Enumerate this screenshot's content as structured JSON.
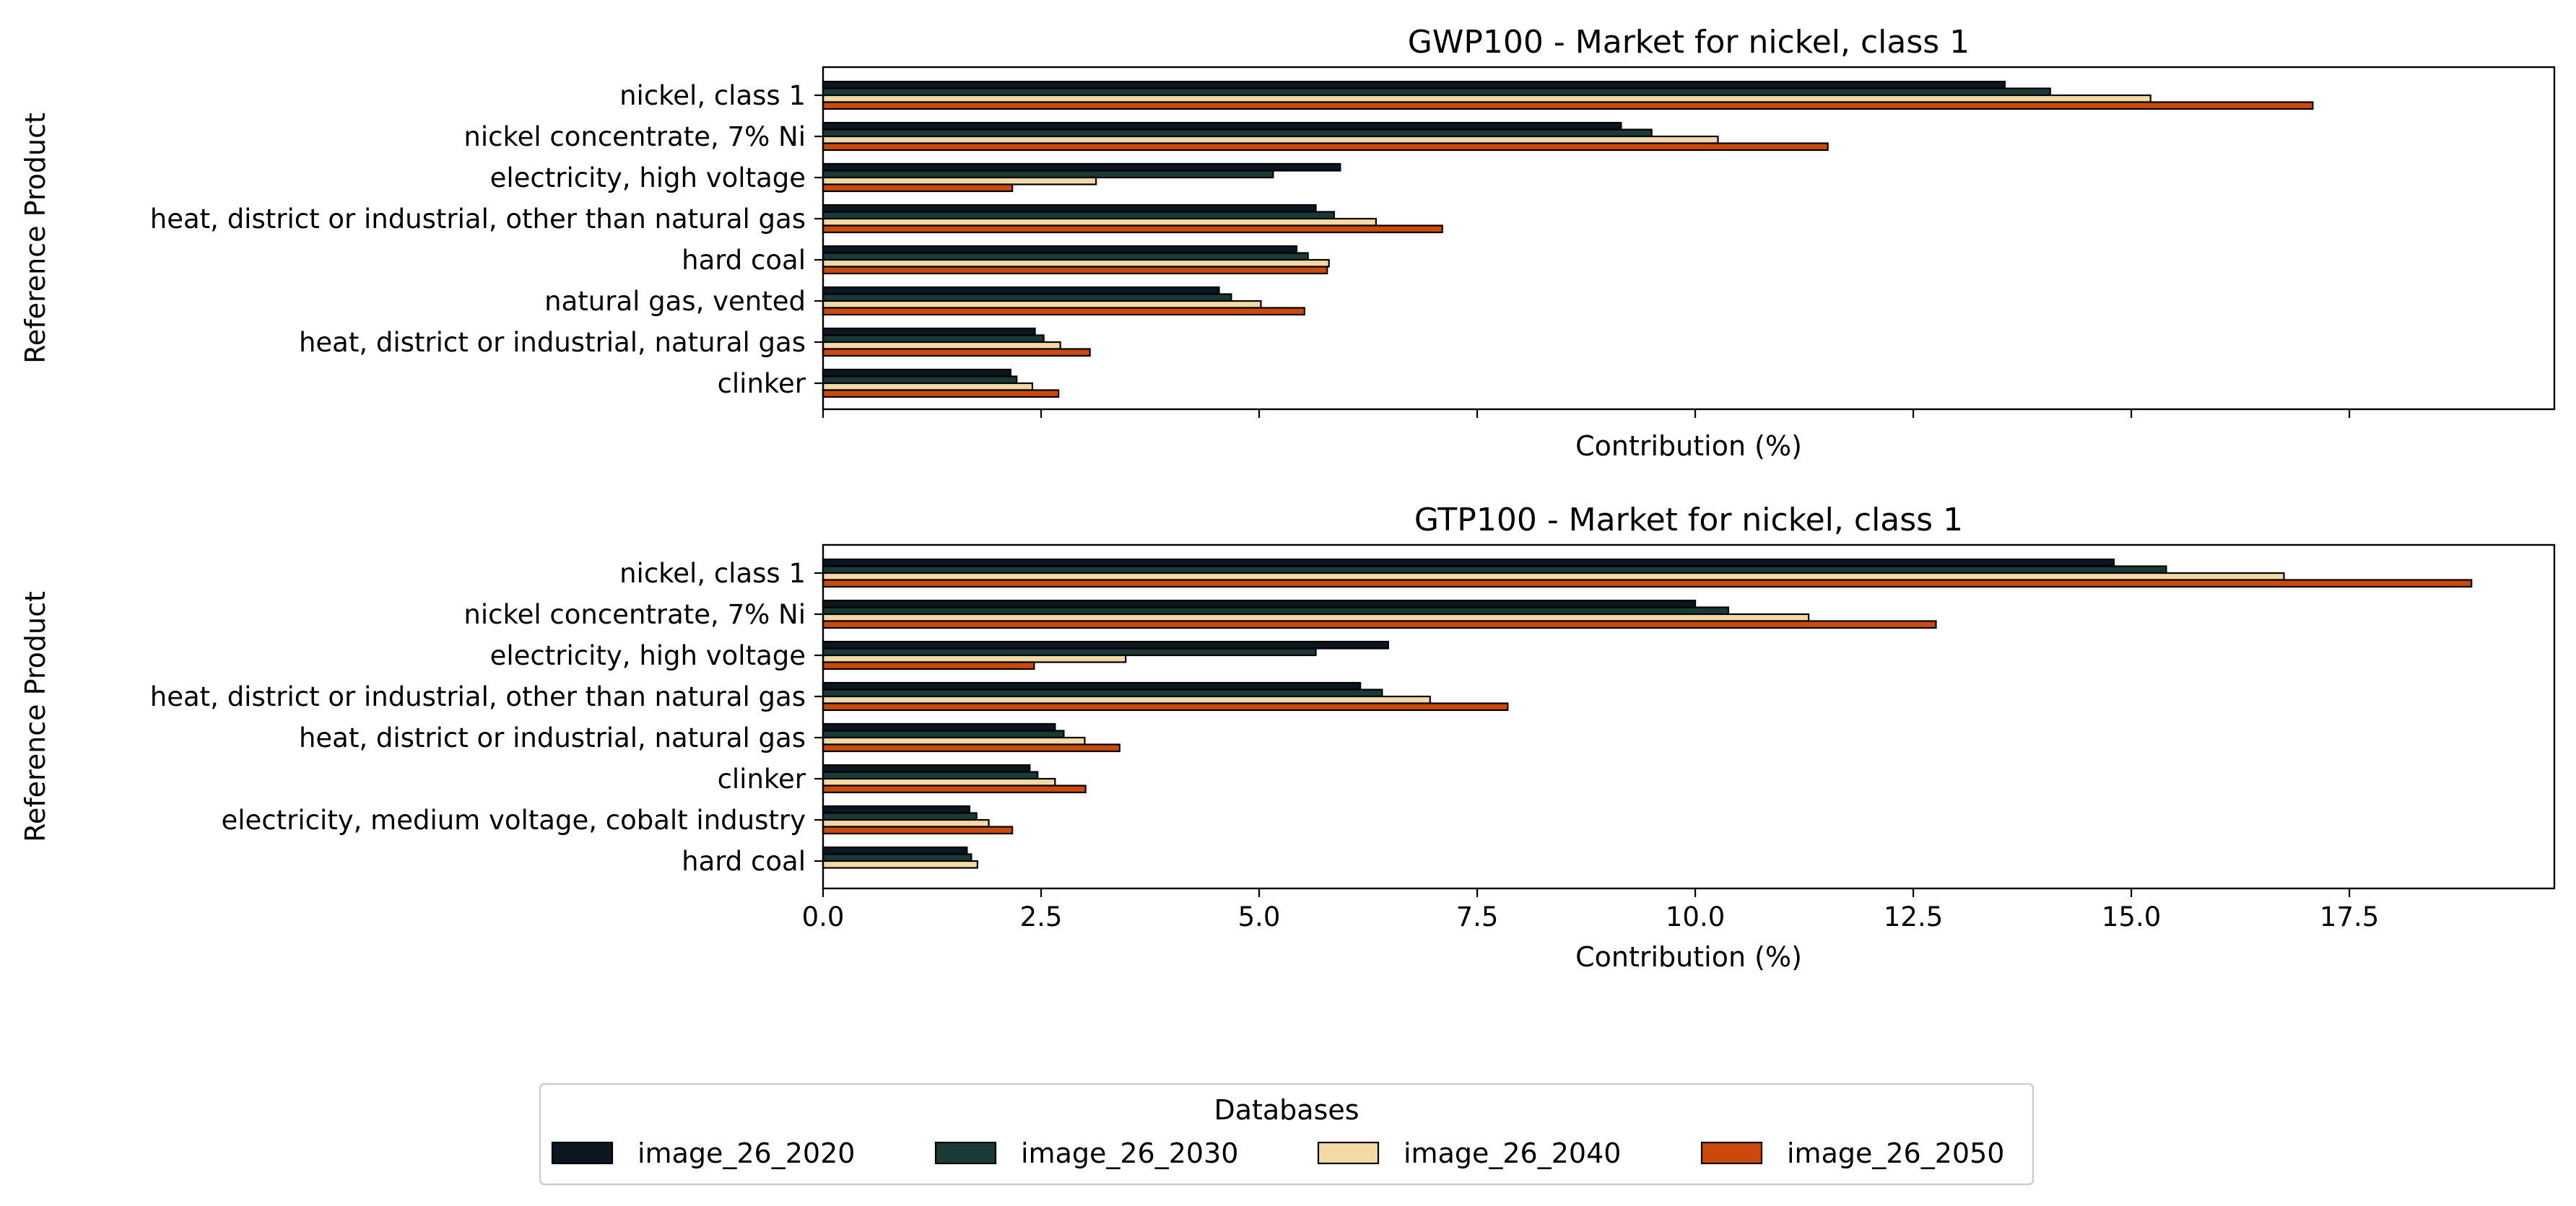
{
  "chart_data": [
    {
      "type": "bar",
      "orientation": "horizontal",
      "title": "GWP100 - Market for nickel, class 1",
      "xlabel": "Contribution (%)",
      "ylabel": "Reference Product",
      "xlim": [
        0,
        19.85
      ],
      "xticks": [
        0,
        2.5,
        5,
        7.5,
        10,
        12.5,
        15,
        17.5
      ],
      "show_xtick_labels": false,
      "categories": [
        "nickel, class 1",
        "nickel concentrate, 7% Ni",
        "electricity, high voltage",
        "heat, district or industrial, other than natural gas",
        "hard coal",
        "natural gas, vented",
        "heat, district or industrial, natural gas",
        "clinker"
      ],
      "series": [
        {
          "name": "image_26_2020",
          "values": [
            13.55,
            9.15,
            5.93,
            5.65,
            5.43,
            4.54,
            2.43,
            2.15
          ]
        },
        {
          "name": "image_26_2030",
          "values": [
            14.07,
            9.5,
            5.16,
            5.86,
            5.56,
            4.68,
            2.53,
            2.22
          ]
        },
        {
          "name": "image_26_2040",
          "values": [
            15.22,
            10.26,
            3.13,
            6.34,
            5.8,
            5.02,
            2.72,
            2.4
          ]
        },
        {
          "name": "image_26_2050",
          "values": [
            17.08,
            11.52,
            2.17,
            7.1,
            5.78,
            5.52,
            3.06,
            2.7
          ]
        }
      ]
    },
    {
      "type": "bar",
      "orientation": "horizontal",
      "title": "GTP100 - Market for nickel, class 1",
      "xlabel": "Contribution (%)",
      "ylabel": "Reference Product",
      "xlim": [
        0,
        19.85
      ],
      "xticks": [
        0,
        2.5,
        5,
        7.5,
        10,
        12.5,
        15,
        17.5
      ],
      "xtick_labels": [
        "0.0",
        "2.5",
        "5.0",
        "7.5",
        "10.0",
        "12.5",
        "15.0",
        "17.5"
      ],
      "show_xtick_labels": true,
      "categories": [
        "nickel, class 1",
        "nickel concentrate, 7% Ni",
        "electricity, high voltage",
        "heat, district or industrial, other than natural gas",
        "heat, district or industrial, natural gas",
        "clinker",
        "electricity, medium voltage, cobalt industry",
        "hard coal"
      ],
      "series": [
        {
          "name": "image_26_2020",
          "values": [
            14.8,
            10.0,
            6.48,
            6.16,
            2.66,
            2.37,
            1.68,
            1.65
          ]
        },
        {
          "name": "image_26_2030",
          "values": [
            15.4,
            10.38,
            5.65,
            6.41,
            2.76,
            2.46,
            1.76,
            1.7
          ]
        },
        {
          "name": "image_26_2040",
          "values": [
            16.75,
            11.3,
            3.47,
            6.96,
            3.0,
            2.66,
            1.9,
            1.77
          ]
        },
        {
          "name": "image_26_2050",
          "values": [
            18.9,
            12.76,
            2.42,
            7.85,
            3.4,
            3.01,
            2.17,
            0.0
          ]
        }
      ]
    }
  ],
  "legend": {
    "title": "Databases",
    "placement": "bottom-center",
    "items": [
      {
        "label": "image_26_2020",
        "color": "#0b1621"
      },
      {
        "label": "image_26_2030",
        "color": "#1a3a36"
      },
      {
        "label": "image_26_2040",
        "color": "#f3d9a6"
      },
      {
        "label": "image_26_2050",
        "color": "#c94a0b"
      }
    ]
  }
}
